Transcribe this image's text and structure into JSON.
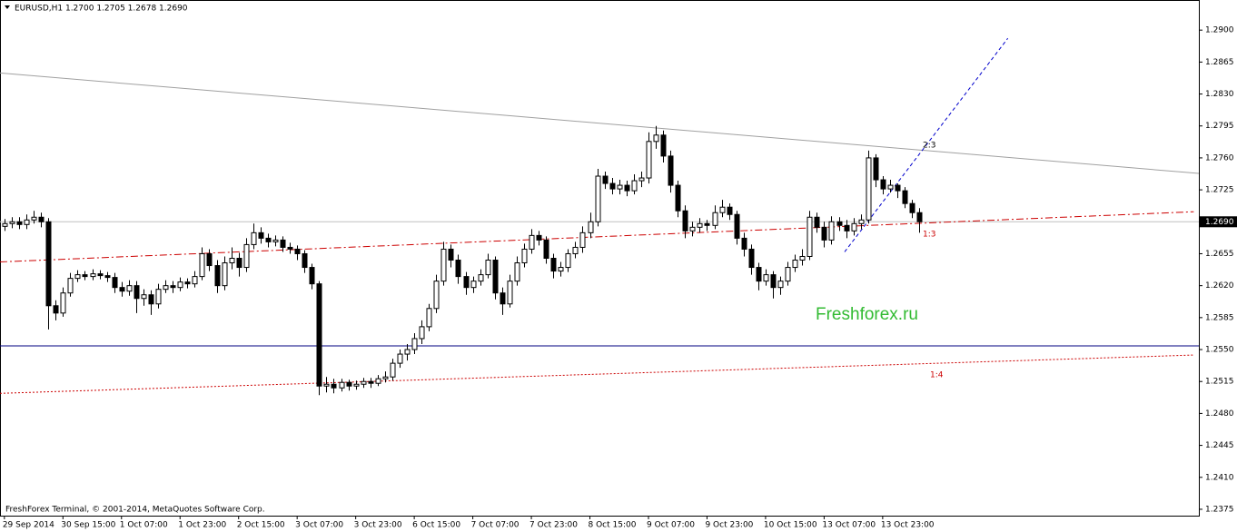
{
  "chart_data": {
    "type": "candlestick",
    "title": "EURUSD,H1  1.2700 1.2705 1.2678 1.2690",
    "footer": "FreshForex Terminal, © 2001-2014, MetaQuotes Software Corp.",
    "watermark": "Freshforex.ru",
    "annotations": [
      "2:3",
      "1:3",
      "1:4"
    ],
    "candle_color": "#000000",
    "xlim": [
      -0.6,
      163.2
    ],
    "ylim": [
      1.2368,
      1.2933
    ],
    "xticks": [
      {
        "value": 0,
        "label": "29 Sep 2014"
      },
      {
        "value": 8,
        "label": "30 Sep 15:00"
      },
      {
        "value": 16,
        "label": "1 Oct 07:00"
      },
      {
        "value": 24,
        "label": "1 Oct 23:00"
      },
      {
        "value": 32,
        "label": "2 Oct 15:00"
      },
      {
        "value": 40,
        "label": "3 Oct 07:00"
      },
      {
        "value": 48,
        "label": "3 Oct 23:00"
      },
      {
        "value": 56,
        "label": "6 Oct 15:00"
      },
      {
        "value": 64,
        "label": "7 Oct 07:00"
      },
      {
        "value": 72,
        "label": "7 Oct 23:00"
      },
      {
        "value": 80,
        "label": "8 Oct 15:00"
      },
      {
        "value": 88,
        "label": "9 Oct 07:00"
      },
      {
        "value": 96,
        "label": "9 Oct 23:00"
      },
      {
        "value": 104,
        "label": "10 Oct 15:00"
      },
      {
        "value": 112,
        "label": "13 Oct 07:00"
      },
      {
        "value": 120,
        "label": "13 Oct 23:00"
      }
    ],
    "yticks": [
      {
        "value": 1.29,
        "label": "1.2900"
      },
      {
        "value": 1.2865,
        "label": "1.2865"
      },
      {
        "value": 1.283,
        "label": "1.2830"
      },
      {
        "value": 1.2795,
        "label": "1.2795"
      },
      {
        "value": 1.276,
        "label": "1.2760"
      },
      {
        "value": 1.2725,
        "label": "1.2725"
      },
      {
        "value": 1.2655,
        "label": "1.2655"
      },
      {
        "value": 1.262,
        "label": "1.2620"
      },
      {
        "value": 1.2585,
        "label": "1.2585"
      },
      {
        "value": 1.255,
        "label": "1.2550"
      },
      {
        "value": 1.2515,
        "label": "1.2515"
      },
      {
        "value": 1.248,
        "label": "1.2480"
      },
      {
        "value": 1.2445,
        "label": "1.2445"
      },
      {
        "value": 1.241,
        "label": "1.2410"
      },
      {
        "value": 1.2375,
        "label": "1.2375"
      }
    ],
    "last_price": {
      "value": 1.269,
      "label": "1.2690"
    },
    "lines": [
      {
        "color": "#a0a0a0",
        "style": "solid",
        "x": [
          -0.6,
          163.2
        ],
        "y": [
          1.2853,
          1.2743
        ]
      },
      {
        "color": "#000080",
        "style": "solid",
        "x": [
          -0.6,
          163.2
        ],
        "y": [
          1.2554,
          1.2554
        ]
      },
      {
        "color": "#cc0000",
        "style": "dashdot",
        "x": [
          -0.6,
          162.5
        ],
        "y": [
          1.2646,
          1.2701
        ]
      },
      {
        "color": "#cc0000",
        "style": "dotted",
        "x": [
          -0.6,
          162.5
        ],
        "y": [
          1.2502,
          1.2544
        ]
      },
      {
        "color": "#0000cc",
        "style": "dashed",
        "x": [
          114.8,
          137.1
        ],
        "y": [
          1.2657,
          1.2891
        ]
      }
    ],
    "candles": {
      "open": [
        1.2685,
        1.2688,
        1.269,
        1.2687,
        1.2692,
        1.2695,
        1.269,
        1.2598,
        1.259,
        1.2612,
        1.2628,
        1.2632,
        1.263,
        1.2633,
        1.2631,
        1.2629,
        1.2618,
        1.2614,
        1.262,
        1.2606,
        1.261,
        1.26,
        1.2616,
        1.262,
        1.2618,
        1.2624,
        1.2622,
        1.263,
        1.2655,
        1.2642,
        1.262,
        1.2645,
        1.265,
        1.264,
        1.2665,
        1.2678,
        1.2672,
        1.2668,
        1.267,
        1.2662,
        1.266,
        1.2655,
        1.264,
        1.2622,
        1.251,
        1.2512,
        1.2508,
        1.2514,
        1.251,
        1.2512,
        1.2515,
        1.2513,
        1.2518,
        1.252,
        1.2535,
        1.2545,
        1.255,
        1.2562,
        1.2575,
        1.2595,
        1.2625,
        1.266,
        1.2648,
        1.263,
        1.2618,
        1.2625,
        1.2632,
        1.2648,
        1.2612,
        1.26,
        1.2625,
        1.2645,
        1.266,
        1.2675,
        1.267,
        1.265,
        1.2636,
        1.264,
        1.2655,
        1.2662,
        1.2678,
        1.269,
        1.274,
        1.2732,
        1.2726,
        1.273,
        1.2724,
        1.2735,
        1.2738,
        1.2778,
        1.2785,
        1.2762,
        1.273,
        1.2702,
        1.268,
        1.2684,
        1.2688,
        1.2686,
        1.27,
        1.2706,
        1.2698,
        1.2672,
        1.266,
        1.264,
        1.2625,
        1.2632,
        1.2618,
        1.2625,
        1.264,
        1.2648,
        1.2652,
        1.2695,
        1.2684,
        1.267,
        1.269,
        1.2686,
        1.268,
        1.2688,
        1.2692,
        1.276,
        1.2736,
        1.2726,
        1.273,
        1.2724,
        1.271,
        1.27
      ],
      "high": [
        1.2693,
        1.2695,
        1.2695,
        1.2698,
        1.2702,
        1.27,
        1.2694,
        1.2604,
        1.2618,
        1.2634,
        1.2637,
        1.2636,
        1.2638,
        1.2637,
        1.2635,
        1.2634,
        1.2624,
        1.2626,
        1.2625,
        1.2616,
        1.2615,
        1.2622,
        1.2626,
        1.2625,
        1.2629,
        1.2628,
        1.2636,
        1.2662,
        1.266,
        1.2648,
        1.2652,
        1.2662,
        1.2656,
        1.2672,
        1.2688,
        1.2684,
        1.2677,
        1.2675,
        1.2674,
        1.2667,
        1.2664,
        1.2659,
        1.2644,
        1.2625,
        1.252,
        1.2518,
        1.2518,
        1.2517,
        1.2516,
        1.2519,
        1.2519,
        1.2522,
        1.2526,
        1.254,
        1.255,
        1.2556,
        1.2568,
        1.2582,
        1.26,
        1.2632,
        1.2668,
        1.2665,
        1.2654,
        1.2635,
        1.263,
        1.2638,
        1.2655,
        1.2652,
        1.2618,
        1.2632,
        1.2652,
        1.2666,
        1.2682,
        1.268,
        1.2674,
        1.2655,
        1.2646,
        1.266,
        1.2668,
        1.2685,
        1.27,
        1.2748,
        1.2745,
        1.2738,
        1.2736,
        1.2735,
        1.2742,
        1.2745,
        1.2788,
        1.2795,
        1.279,
        1.2768,
        1.2735,
        1.2708,
        1.269,
        1.2694,
        1.2692,
        1.2708,
        1.2714,
        1.271,
        1.2702,
        1.2678,
        1.2665,
        1.2645,
        1.2638,
        1.2636,
        1.263,
        1.2646,
        1.2654,
        1.266,
        1.2702,
        1.27,
        1.269,
        1.2696,
        1.2695,
        1.2692,
        1.2694,
        1.2698,
        1.2768,
        1.2764,
        1.274,
        1.2736,
        1.2732,
        1.2728,
        1.2714,
        1.2705
      ],
      "low": [
        1.268,
        1.2683,
        1.2682,
        1.2682,
        1.2688,
        1.2684,
        1.2572,
        1.2582,
        1.2586,
        1.2608,
        1.2624,
        1.2626,
        1.2626,
        1.2627,
        1.2624,
        1.2612,
        1.2608,
        1.2609,
        1.259,
        1.2598,
        1.2588,
        1.2595,
        1.2612,
        1.2612,
        1.2614,
        1.2617,
        1.2618,
        1.2626,
        1.2636,
        1.2612,
        1.2615,
        1.2638,
        1.263,
        1.2635,
        1.266,
        1.2666,
        1.2662,
        1.2663,
        1.2657,
        1.2655,
        1.2648,
        1.2634,
        1.2616,
        1.25,
        1.2503,
        1.2502,
        1.2504,
        1.2505,
        1.2506,
        1.2508,
        1.2508,
        1.251,
        1.2514,
        1.2516,
        1.253,
        1.2538,
        1.2545,
        1.2556,
        1.257,
        1.259,
        1.262,
        1.264,
        1.2622,
        1.261,
        1.2612,
        1.262,
        1.2628,
        1.2605,
        1.2588,
        1.2596,
        1.262,
        1.264,
        1.2655,
        1.2664,
        1.2644,
        1.2628,
        1.263,
        1.2635,
        1.265,
        1.2656,
        1.2672,
        1.2685,
        1.2726,
        1.272,
        1.272,
        1.2718,
        1.272,
        1.2728,
        1.2732,
        1.277,
        1.2755,
        1.2722,
        1.2695,
        1.2672,
        1.2674,
        1.2678,
        1.268,
        1.2682,
        1.2695,
        1.2692,
        1.2665,
        1.2652,
        1.2632,
        1.2615,
        1.262,
        1.2606,
        1.261,
        1.262,
        1.2635,
        1.2642,
        1.2648,
        1.2678,
        1.2662,
        1.2665,
        1.268,
        1.2672,
        1.2675,
        1.2682,
        1.2688,
        1.2728,
        1.272,
        1.2722,
        1.2716,
        1.2705,
        1.2694,
        1.2678
      ],
      "close": [
        1.2688,
        1.269,
        1.2687,
        1.2692,
        1.2695,
        1.269,
        1.2598,
        1.259,
        1.2612,
        1.2628,
        1.2632,
        1.263,
        1.2633,
        1.2631,
        1.2629,
        1.2618,
        1.2614,
        1.262,
        1.2606,
        1.261,
        1.26,
        1.2616,
        1.262,
        1.2618,
        1.2624,
        1.2622,
        1.263,
        1.2655,
        1.2642,
        1.262,
        1.2645,
        1.265,
        1.264,
        1.2665,
        1.2678,
        1.2672,
        1.2668,
        1.267,
        1.2662,
        1.266,
        1.2655,
        1.264,
        1.2622,
        1.251,
        1.2512,
        1.2508,
        1.2514,
        1.251,
        1.2512,
        1.2515,
        1.2513,
        1.2518,
        1.252,
        1.2535,
        1.2545,
        1.255,
        1.2562,
        1.2575,
        1.2595,
        1.2625,
        1.266,
        1.2648,
        1.263,
        1.2618,
        1.2625,
        1.2632,
        1.2648,
        1.2612,
        1.26,
        1.2625,
        1.2645,
        1.266,
        1.2675,
        1.267,
        1.265,
        1.2636,
        1.264,
        1.2655,
        1.2662,
        1.2678,
        1.269,
        1.274,
        1.2732,
        1.2726,
        1.273,
        1.2724,
        1.2735,
        1.2738,
        1.2778,
        1.2785,
        1.2762,
        1.273,
        1.2702,
        1.268,
        1.2684,
        1.2688,
        1.2686,
        1.27,
        1.2706,
        1.2698,
        1.2672,
        1.266,
        1.264,
        1.2625,
        1.2632,
        1.2618,
        1.2625,
        1.264,
        1.2648,
        1.2652,
        1.2695,
        1.2684,
        1.267,
        1.269,
        1.2686,
        1.268,
        1.2688,
        1.2692,
        1.276,
        1.2736,
        1.2726,
        1.273,
        1.2724,
        1.271,
        1.27,
        1.269
      ]
    }
  }
}
